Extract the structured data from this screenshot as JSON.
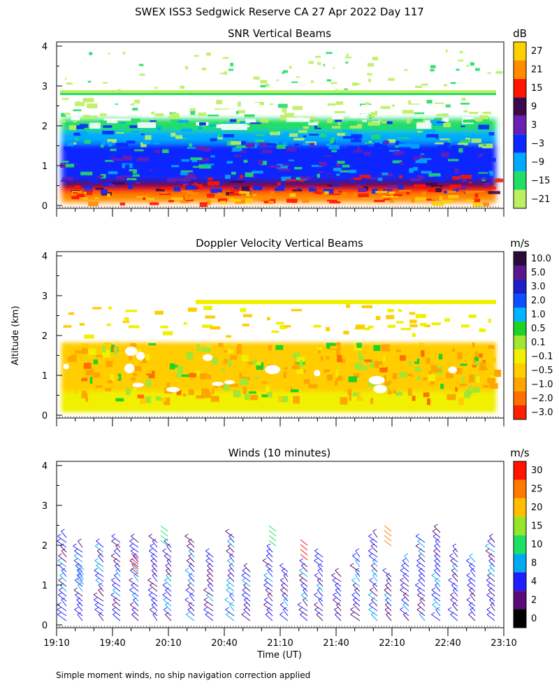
{
  "title": "SWEX ISS3 Sedgwick Reserve CA  27 Apr 2022 Day 117",
  "footnote": "Simple moment winds, no ship navigation correction applied",
  "chart_data": [
    {
      "type": "heatmap",
      "title": "SNR Vertical Beams",
      "xlabel": "",
      "ylabel": "",
      "ylim": [
        0,
        4
      ],
      "yticks": [
        "0",
        "1",
        "2",
        "3",
        "4"
      ],
      "colorbar": {
        "unit": "dB",
        "labels": [
          "27",
          "21",
          "15",
          "9",
          "3",
          "−3",
          "−9",
          "−15",
          "−21"
        ],
        "colors": [
          "#ffd000",
          "#ff8c00",
          "#ff1400",
          "#3c0a4a",
          "#6a1fb4",
          "#0a28ff",
          "#00aaff",
          "#22dd66",
          "#bbf060"
        ]
      }
    },
    {
      "type": "heatmap",
      "title": "Doppler Velocity Vertical Beams",
      "xlabel": "",
      "ylabel": "Altitude (km)",
      "ylim": [
        0,
        4
      ],
      "yticks": [
        "0",
        "1",
        "2",
        "3",
        "4"
      ],
      "colorbar": {
        "unit": "m/s",
        "labels": [
          "10.0",
          "5.0",
          "3.0",
          "2.0",
          "1.0",
          "0.5",
          "0.1",
          "−0.1",
          "−0.5",
          "−1.0",
          "−2.0",
          "−3.0"
        ],
        "colors": [
          "#2a0a3a",
          "#5a168c",
          "#1e1ec8",
          "#0a50ff",
          "#00b4ff",
          "#1ed228",
          "#a0e632",
          "#f0f000",
          "#ffcd00",
          "#ffa500",
          "#ff6e00",
          "#ff1e00"
        ]
      }
    },
    {
      "type": "scatter",
      "title": "Winds (10 minutes)",
      "xlabel": "Time (UT)",
      "ylabel": "",
      "ylim": [
        0,
        4
      ],
      "yticks": [
        "0",
        "1",
        "2",
        "3",
        "4"
      ],
      "xticks": [
        "19:10",
        "19:40",
        "20:10",
        "20:40",
        "21:10",
        "21:40",
        "22:10",
        "22:40",
        "23:10"
      ],
      "colorbar": {
        "unit": "m/s",
        "labels": [
          "30",
          "25",
          "20",
          "15",
          "10",
          "8",
          "4",
          "2",
          "0"
        ],
        "colors": [
          "#ff1400",
          "#ff7800",
          "#ffbe00",
          "#96e628",
          "#1ee164",
          "#00aaf0",
          "#1e1eff",
          "#5a0a78",
          "#000000"
        ]
      }
    }
  ]
}
